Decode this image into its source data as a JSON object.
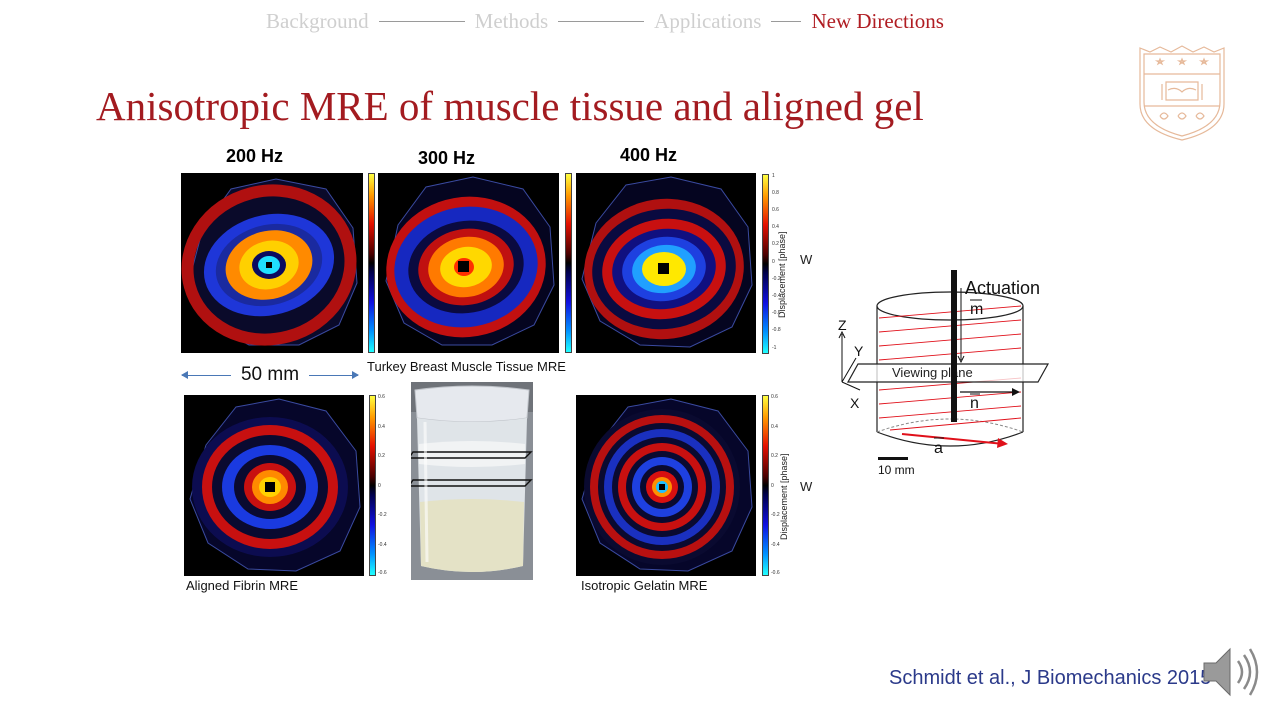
{
  "nav": {
    "items": [
      {
        "label": "Background",
        "active": false
      },
      {
        "label": "Methods",
        "active": false
      },
      {
        "label": "Applications",
        "active": false
      },
      {
        "label": "New Directions",
        "active": true
      }
    ]
  },
  "slide": {
    "title": "Anisotropic MRE of muscle tissue and aligned gel",
    "citation": "Schmidt et al., J Biomechanics 2015"
  },
  "top_row": {
    "frequencies": [
      "200 Hz",
      "300 Hz",
      "400 Hz"
    ],
    "caption": "Turkey Breast Muscle Tissue MRE",
    "colorbar_ticks": [
      "1",
      "0.8",
      "0.6",
      "0.4",
      "0.2",
      "0",
      "-0.2",
      "-0.4",
      "-0.6",
      "-0.8",
      "-1"
    ],
    "colorbar_label": "Displacement [phase]",
    "component_label": "W"
  },
  "scale": {
    "label": "50 mm"
  },
  "bottom_row": {
    "left_caption": "Aligned Fibrin MRE",
    "right_caption": "Isotropic Gelatin MRE",
    "colorbar_ticks": [
      "0.6",
      "0.4",
      "0.2",
      "0",
      "-0.2",
      "-0.4",
      "-0.6"
    ],
    "colorbar_label": "Displacement [phase]",
    "component_label": "W"
  },
  "diagram": {
    "actuation": "Actuation",
    "m_label": "m",
    "viewing_plane": "Viewing plane",
    "n_label": "n",
    "a_label": "a",
    "axes": {
      "z": "Z",
      "y": "Y",
      "x": "X"
    },
    "scale_label": "10 mm"
  },
  "colors": {
    "title": "#a31b20",
    "nav_active": "#b01c22",
    "nav_inactive": "#cfcfcf",
    "citation": "#2b3a8a",
    "fiber_lines": "#e0101a"
  },
  "icons": {
    "seal": "university-seal-icon",
    "speaker": "speaker-icon"
  }
}
